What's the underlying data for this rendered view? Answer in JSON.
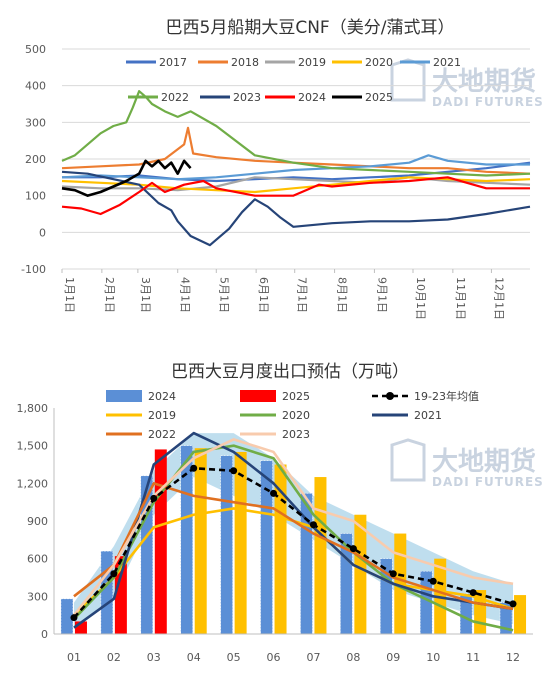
{
  "chart_data": [
    {
      "type": "line",
      "title": "巴西5月船期大豆CNF（美分/蒲式耳）",
      "ylim": [
        -100,
        500
      ],
      "yticks": [
        "500",
        "400",
        "300",
        "200",
        "100",
        "0",
        "-100"
      ],
      "x_ticks": [
        "1月1日",
        "2月1日",
        "3月1日",
        "4月1日",
        "5月1日",
        "6月1日",
        "7月1日",
        "8月1日",
        "9月1日",
        "10月1日",
        "11月1日",
        "12月1日"
      ],
      "legend_position": "top",
      "grid": true,
      "series": [
        {
          "name": "2017",
          "color": "#4472c4",
          "x": [
            0,
            30,
            60,
            90,
            120,
            150,
            180,
            210,
            240,
            270,
            300,
            330,
            364
          ],
          "y": [
            150,
            150,
            155,
            145,
            140,
            145,
            150,
            145,
            150,
            155,
            165,
            175,
            190
          ]
        },
        {
          "name": "2018",
          "color": "#ed7d31",
          "x": [
            0,
            30,
            60,
            80,
            95,
            98,
            102,
            120,
            150,
            180,
            210,
            240,
            270,
            300,
            330,
            364
          ],
          "y": [
            175,
            180,
            185,
            200,
            240,
            285,
            215,
            205,
            195,
            190,
            185,
            180,
            175,
            175,
            165,
            160
          ]
        },
        {
          "name": "2019",
          "color": "#a5a5a5",
          "x": [
            0,
            30,
            60,
            90,
            120,
            150,
            180,
            210,
            240,
            270,
            300,
            330,
            364
          ],
          "y": [
            125,
            120,
            120,
            115,
            125,
            150,
            145,
            140,
            135,
            150,
            140,
            135,
            130
          ]
        },
        {
          "name": "2020",
          "color": "#ffc000",
          "x": [
            0,
            30,
            60,
            90,
            120,
            150,
            180,
            210,
            240,
            270,
            300,
            330,
            364
          ],
          "y": [
            140,
            135,
            130,
            120,
            115,
            110,
            120,
            130,
            140,
            150,
            145,
            140,
            145
          ]
        },
        {
          "name": "2021",
          "color": "#5b9bd5",
          "x": [
            0,
            30,
            60,
            90,
            120,
            150,
            180,
            210,
            240,
            270,
            285,
            300,
            330,
            364
          ],
          "y": [
            150,
            155,
            150,
            145,
            150,
            160,
            170,
            175,
            180,
            190,
            210,
            195,
            185,
            185
          ]
        },
        {
          "name": "2022",
          "color": "#70ad47",
          "x": [
            0,
            10,
            20,
            30,
            40,
            50,
            55,
            60,
            65,
            70,
            80,
            90,
            100,
            120,
            150,
            180,
            210,
            240,
            270,
            300,
            330,
            364
          ],
          "y": [
            195,
            210,
            240,
            270,
            290,
            300,
            340,
            385,
            370,
            350,
            330,
            315,
            330,
            290,
            210,
            190,
            175,
            170,
            165,
            160,
            155,
            160
          ]
        },
        {
          "name": "2023",
          "color": "#264478",
          "x": [
            0,
            20,
            40,
            60,
            75,
            85,
            90,
            100,
            115,
            130,
            140,
            150,
            160,
            170,
            180,
            210,
            240,
            270,
            300,
            330,
            364
          ],
          "y": [
            165,
            160,
            145,
            130,
            80,
            60,
            30,
            -10,
            -35,
            10,
            55,
            90,
            70,
            40,
            15,
            25,
            30,
            30,
            35,
            50,
            70
          ]
        },
        {
          "name": "2024",
          "color": "#ff0000",
          "x": [
            0,
            15,
            30,
            45,
            60,
            70,
            80,
            95,
            110,
            120,
            150,
            180,
            200,
            210,
            240,
            270,
            300,
            320,
            330,
            364
          ],
          "y": [
            70,
            65,
            50,
            75,
            110,
            135,
            110,
            130,
            140,
            120,
            100,
            100,
            130,
            125,
            135,
            140,
            150,
            130,
            120,
            120
          ]
        },
        {
          "name": "2025",
          "color": "#000000",
          "x": [
            0,
            10,
            20,
            30,
            40,
            50,
            60,
            65,
            70,
            75,
            80,
            85,
            90,
            95,
            100
          ],
          "y": [
            120,
            115,
            100,
            110,
            125,
            140,
            160,
            195,
            180,
            195,
            175,
            190,
            160,
            195,
            175
          ]
        }
      ]
    },
    {
      "type": "bar+line",
      "title": "巴西大豆月度出口预估（万吨）",
      "categories": [
        "01",
        "02",
        "03",
        "04",
        "05",
        "06",
        "07",
        "08",
        "09",
        "10",
        "11",
        "12"
      ],
      "ylim": [
        0,
        1800
      ],
      "yticks": [
        "1,800",
        "1,500",
        "1,200",
        "900",
        "600",
        "300",
        "0"
      ],
      "grid": false,
      "legend_position": "top",
      "band": {
        "lower": [
          50,
          300,
          950,
          1250,
          1100,
          950,
          750,
          550,
          350,
          250,
          150,
          80
        ],
        "upper": [
          250,
          700,
          1300,
          1600,
          1600,
          1400,
          1100,
          950,
          800,
          650,
          500,
          400
        ],
        "color": "#a9d3e8"
      },
      "series": [
        {
          "name": "2024",
          "kind": "bar",
          "color": "#5b8fd6",
          "values": [
            280,
            660,
            1260,
            1500,
            1420,
            1380,
            1120,
            800,
            600,
            500,
            320,
            250
          ]
        },
        {
          "name": "2025",
          "kind": "bar",
          "color": "#ff0000",
          "values": [
            100,
            620,
            1470,
            null,
            null,
            null,
            null,
            null,
            null,
            null,
            null,
            null
          ]
        },
        {
          "name": "19-23年均值",
          "kind": "dashed",
          "color": "#000000",
          "values": [
            130,
            480,
            1080,
            1320,
            1300,
            1120,
            870,
            680,
            480,
            420,
            330,
            240
          ]
        },
        {
          "name": "2019",
          "kind": "line",
          "color": "#ffc000",
          "values": [
            150,
            450,
            850,
            950,
            1000,
            950,
            850,
            550,
            400,
            350,
            300,
            200
          ]
        },
        {
          "name": "2020",
          "kind": "line",
          "color": "#70ad47",
          "values": [
            120,
            450,
            1050,
            1450,
            1500,
            1400,
            950,
            650,
            400,
            250,
            100,
            30
          ]
        },
        {
          "name": "2021",
          "kind": "line",
          "color": "#264478",
          "values": [
            50,
            280,
            1350,
            1600,
            1450,
            1200,
            850,
            550,
            400,
            300,
            250,
            200
          ]
        },
        {
          "name": "2022",
          "kind": "line",
          "color": "#e07020",
          "values": [
            300,
            550,
            1200,
            1100,
            1050,
            1000,
            800,
            650,
            450,
            350,
            250,
            200
          ]
        },
        {
          "name": "2023",
          "kind": "line",
          "color": "#f8cbad",
          "values": [
            150,
            550,
            1100,
            1400,
            1550,
            1450,
            1000,
            900,
            650,
            550,
            450,
            400
          ]
        },
        {
          "name": "2019",
          "kind": "bar",
          "color": "#ffc000",
          "values": [
            null,
            null,
            null,
            1480,
            1450,
            1350,
            1250,
            950,
            800,
            600,
            350,
            310
          ]
        }
      ]
    }
  ],
  "watermark": {
    "cn": "大地期货",
    "en": "DADI FUTURES"
  }
}
